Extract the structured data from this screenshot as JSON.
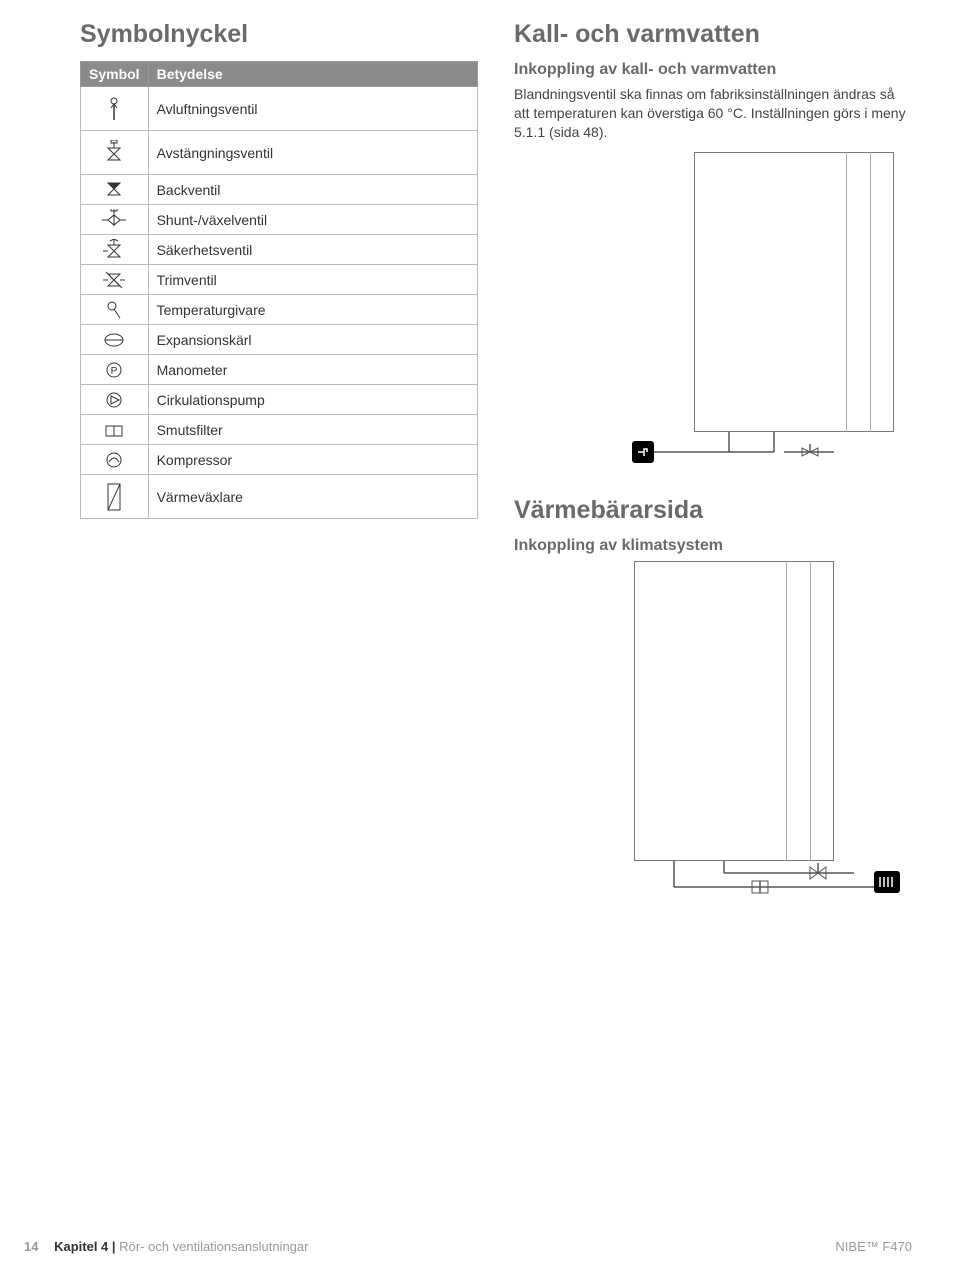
{
  "left": {
    "title": "Symbolnyckel",
    "table": {
      "head_sym": "Symbol",
      "head_mean": "Betydelse",
      "rows": [
        {
          "icon": "vent",
          "label": "Avluftningsventil",
          "tall": true
        },
        {
          "icon": "shutoff",
          "label": "Avstängningsventil",
          "tall": true
        },
        {
          "icon": "check",
          "label": "Backventil"
        },
        {
          "icon": "shunt",
          "label": "Shunt-/växelventil"
        },
        {
          "icon": "safety",
          "label": "Säkerhetsventil"
        },
        {
          "icon": "trim",
          "label": "Trimventil"
        },
        {
          "icon": "temp",
          "label": "Temperaturgivare"
        },
        {
          "icon": "exp",
          "label": "Expansionskärl"
        },
        {
          "icon": "mano",
          "label": "Manometer"
        },
        {
          "icon": "pump",
          "label": "Cirkulationspump"
        },
        {
          "icon": "filter",
          "label": "Smutsfilter"
        },
        {
          "icon": "comp",
          "label": "Kompressor"
        },
        {
          "icon": "hx",
          "label": "Värmeväxlare",
          "tall": true
        }
      ]
    }
  },
  "right": {
    "s1_title": "Kall- och varmvatten",
    "s1_sub": "Inkoppling av kall- och varmvatten",
    "s1_para": "Blandningsventil ska finnas om fabriksinställningen ändras så att temperaturen kan överstiga 60 °C. Inställningen görs i meny 5.1.1 (sida 48).",
    "s2_title": "Värmebärarsida",
    "s2_sub": "Inkoppling av klimatsystem"
  },
  "footer": {
    "page": "14",
    "chapter_b": "Kapitel 4 |",
    "chapter_r": " Rör- och ventilationsanslutningar",
    "model": "NIBE™ F470"
  },
  "style": {
    "fg": "#333333",
    "grey": "#6a6a6a",
    "line": "#555555"
  }
}
